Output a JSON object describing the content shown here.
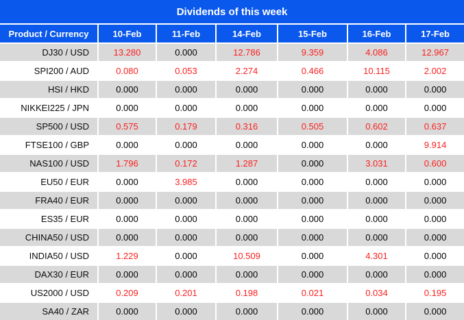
{
  "title": "Dividends of this week",
  "columns": [
    "Product / Currency",
    "10-Feb",
    "11-Feb",
    "14-Feb",
    "15-Feb",
    "16-Feb",
    "17-Feb"
  ],
  "rows": [
    {
      "product": "DJ30 / USD",
      "values": [
        "13.280",
        "0.000",
        "12.786",
        "9.359",
        "4.086",
        "12.967"
      ]
    },
    {
      "product": "SPI200 / AUD",
      "values": [
        "0.080",
        "0.053",
        "2.274",
        "0.466",
        "10.115",
        "2.002"
      ]
    },
    {
      "product": "HSI / HKD",
      "values": [
        "0.000",
        "0.000",
        "0.000",
        "0.000",
        "0.000",
        "0.000"
      ]
    },
    {
      "product": "NIKKEI225 / JPN",
      "values": [
        "0.000",
        "0.000",
        "0.000",
        "0.000",
        "0.000",
        "0.000"
      ]
    },
    {
      "product": "SP500 / USD",
      "values": [
        "0.575",
        "0.179",
        "0.316",
        "0.505",
        "0.602",
        "0.637"
      ]
    },
    {
      "product": "FTSE100 / GBP",
      "values": [
        "0.000",
        "0.000",
        "0.000",
        "0.000",
        "0.000",
        "9.914"
      ]
    },
    {
      "product": "NAS100 / USD",
      "values": [
        "1.796",
        "0.172",
        "1.287",
        "0.000",
        "3.031",
        "0.600"
      ]
    },
    {
      "product": "EU50 / EUR",
      "values": [
        "0.000",
        "3.985",
        "0.000",
        "0.000",
        "0.000",
        "0.000"
      ]
    },
    {
      "product": "FRA40 / EUR",
      "values": [
        "0.000",
        "0.000",
        "0.000",
        "0.000",
        "0.000",
        "0.000"
      ]
    },
    {
      "product": "ES35 / EUR",
      "values": [
        "0.000",
        "0.000",
        "0.000",
        "0.000",
        "0.000",
        "0.000"
      ]
    },
    {
      "product": "CHINA50 / USD",
      "values": [
        "0.000",
        "0.000",
        "0.000",
        "0.000",
        "0.000",
        "0.000"
      ]
    },
    {
      "product": "INDIA50 / USD",
      "values": [
        "1.229",
        "0.000",
        "10.509",
        "0.000",
        "4.301",
        "0.000"
      ]
    },
    {
      "product": "DAX30 / EUR",
      "values": [
        "0.000",
        "0.000",
        "0.000",
        "0.000",
        "0.000",
        "0.000"
      ]
    },
    {
      "product": "US2000 / USD",
      "values": [
        "0.209",
        "0.201",
        "0.198",
        "0.021",
        "0.034",
        "0.195"
      ]
    },
    {
      "product": "SA40 / ZAR",
      "values": [
        "0.000",
        "0.000",
        "0.000",
        "0.000",
        "0.000",
        "0.000"
      ]
    }
  ],
  "colors": {
    "header_bg": "#0b58ec",
    "header_text": "#ffffff",
    "row_alt_bg": "#d9d9d9",
    "row_bg": "#ffffff",
    "value_nonzero": "#fb2020",
    "value_zero": "#000000"
  }
}
